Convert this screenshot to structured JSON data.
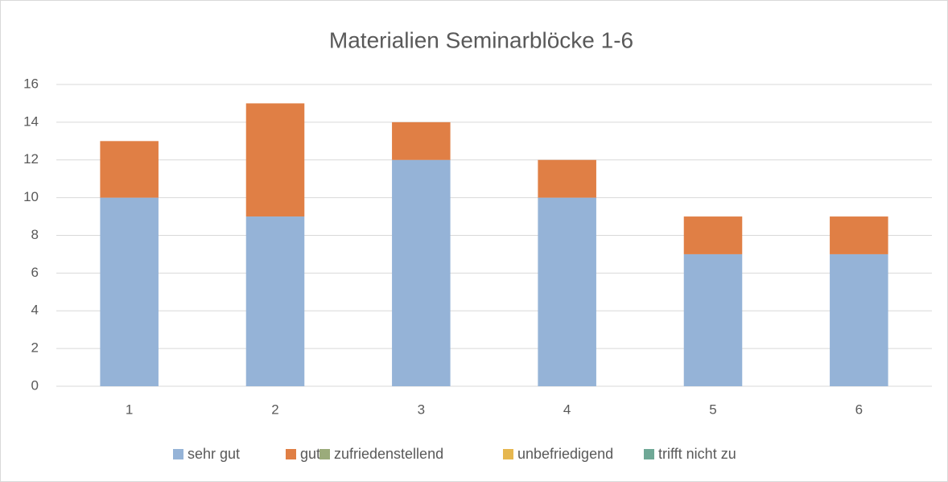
{
  "chart_data": {
    "type": "stacked_bar",
    "title": "Materialien Seminarblöcke 1-6",
    "categories": [
      "1",
      "2",
      "3",
      "4",
      "5",
      "6"
    ],
    "series": [
      {
        "name": "sehr gut",
        "color": "#95b3d7",
        "values": [
          10,
          9,
          12,
          10,
          7,
          7
        ]
      },
      {
        "name": "gut",
        "color": "#e07f45",
        "values": [
          3,
          6,
          2,
          2,
          2,
          2
        ]
      },
      {
        "name": "zufriedenstellend",
        "color": "#9bab7b",
        "values": [
          0,
          0,
          0,
          0,
          0,
          0
        ]
      },
      {
        "name": "unbefriedigend",
        "color": "#e6b74f",
        "values": [
          0,
          0,
          0,
          0,
          0,
          0
        ]
      },
      {
        "name": "trifft nicht zu",
        "color": "#6fa896",
        "values": [
          0,
          0,
          0,
          0,
          0,
          0
        ]
      }
    ],
    "ylim": [
      0,
      16
    ],
    "yticks": [
      0,
      2,
      4,
      6,
      8,
      10,
      12,
      14,
      16
    ],
    "grid": true,
    "legend": "bottom"
  }
}
